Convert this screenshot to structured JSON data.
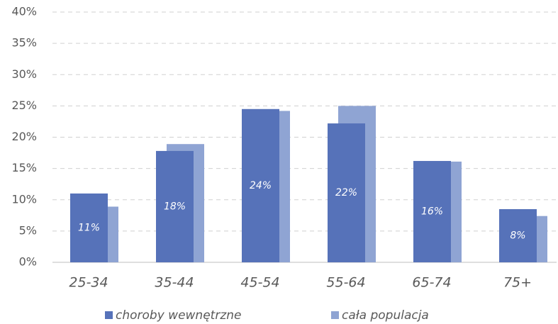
{
  "chart_data": {
    "type": "bar",
    "categories": [
      "25-34",
      "35-44",
      "45-54",
      "55-64",
      "65-74",
      "75+"
    ],
    "series": [
      {
        "name": "choroby wewnętrzne",
        "color": "#5672b9",
        "values": [
          11.0,
          17.8,
          24.5,
          22.2,
          16.2,
          8.5
        ],
        "value_labels": [
          "11%",
          "18%",
          "24%",
          "22%",
          "16%",
          "8%"
        ]
      },
      {
        "name": "cała populacja",
        "color": "#8fa4d3",
        "values": [
          8.9,
          18.9,
          24.2,
          25.0,
          16.1,
          7.4
        ]
      }
    ],
    "ylim": [
      0,
      40
    ],
    "yticks": [
      {
        "value": 0,
        "label": "0%"
      },
      {
        "value": 5,
        "label": "5%"
      },
      {
        "value": 10,
        "label": "10%"
      },
      {
        "value": 15,
        "label": "15%"
      },
      {
        "value": 20,
        "label": "20%"
      },
      {
        "value": 25,
        "label": "25%"
      },
      {
        "value": 30,
        "label": "30%"
      },
      {
        "value": 35,
        "label": "35%"
      },
      {
        "value": 40,
        "label": "40%"
      }
    ],
    "grid": true,
    "legend": "bottom"
  }
}
